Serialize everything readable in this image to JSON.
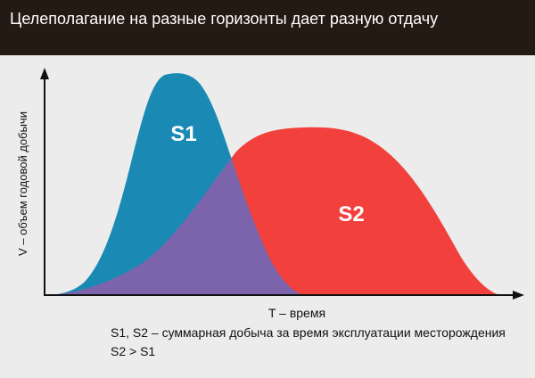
{
  "header": {
    "title": "Целеполагание на разные горизонты дает разную отдачу"
  },
  "chart_data": {
    "type": "area",
    "xlabel": "T – время",
    "ylabel": "V – объем годовой добычи",
    "series": [
      {
        "name": "S1",
        "color": "#1a8ab4"
      },
      {
        "name": "S2",
        "color": "#f2403c"
      }
    ],
    "overlap_color": "#7c64ad"
  },
  "notes": {
    "line1": "S1, S2 – суммарная добыча за время эксплуатации месторождения",
    "line2": "S2 > S1"
  }
}
